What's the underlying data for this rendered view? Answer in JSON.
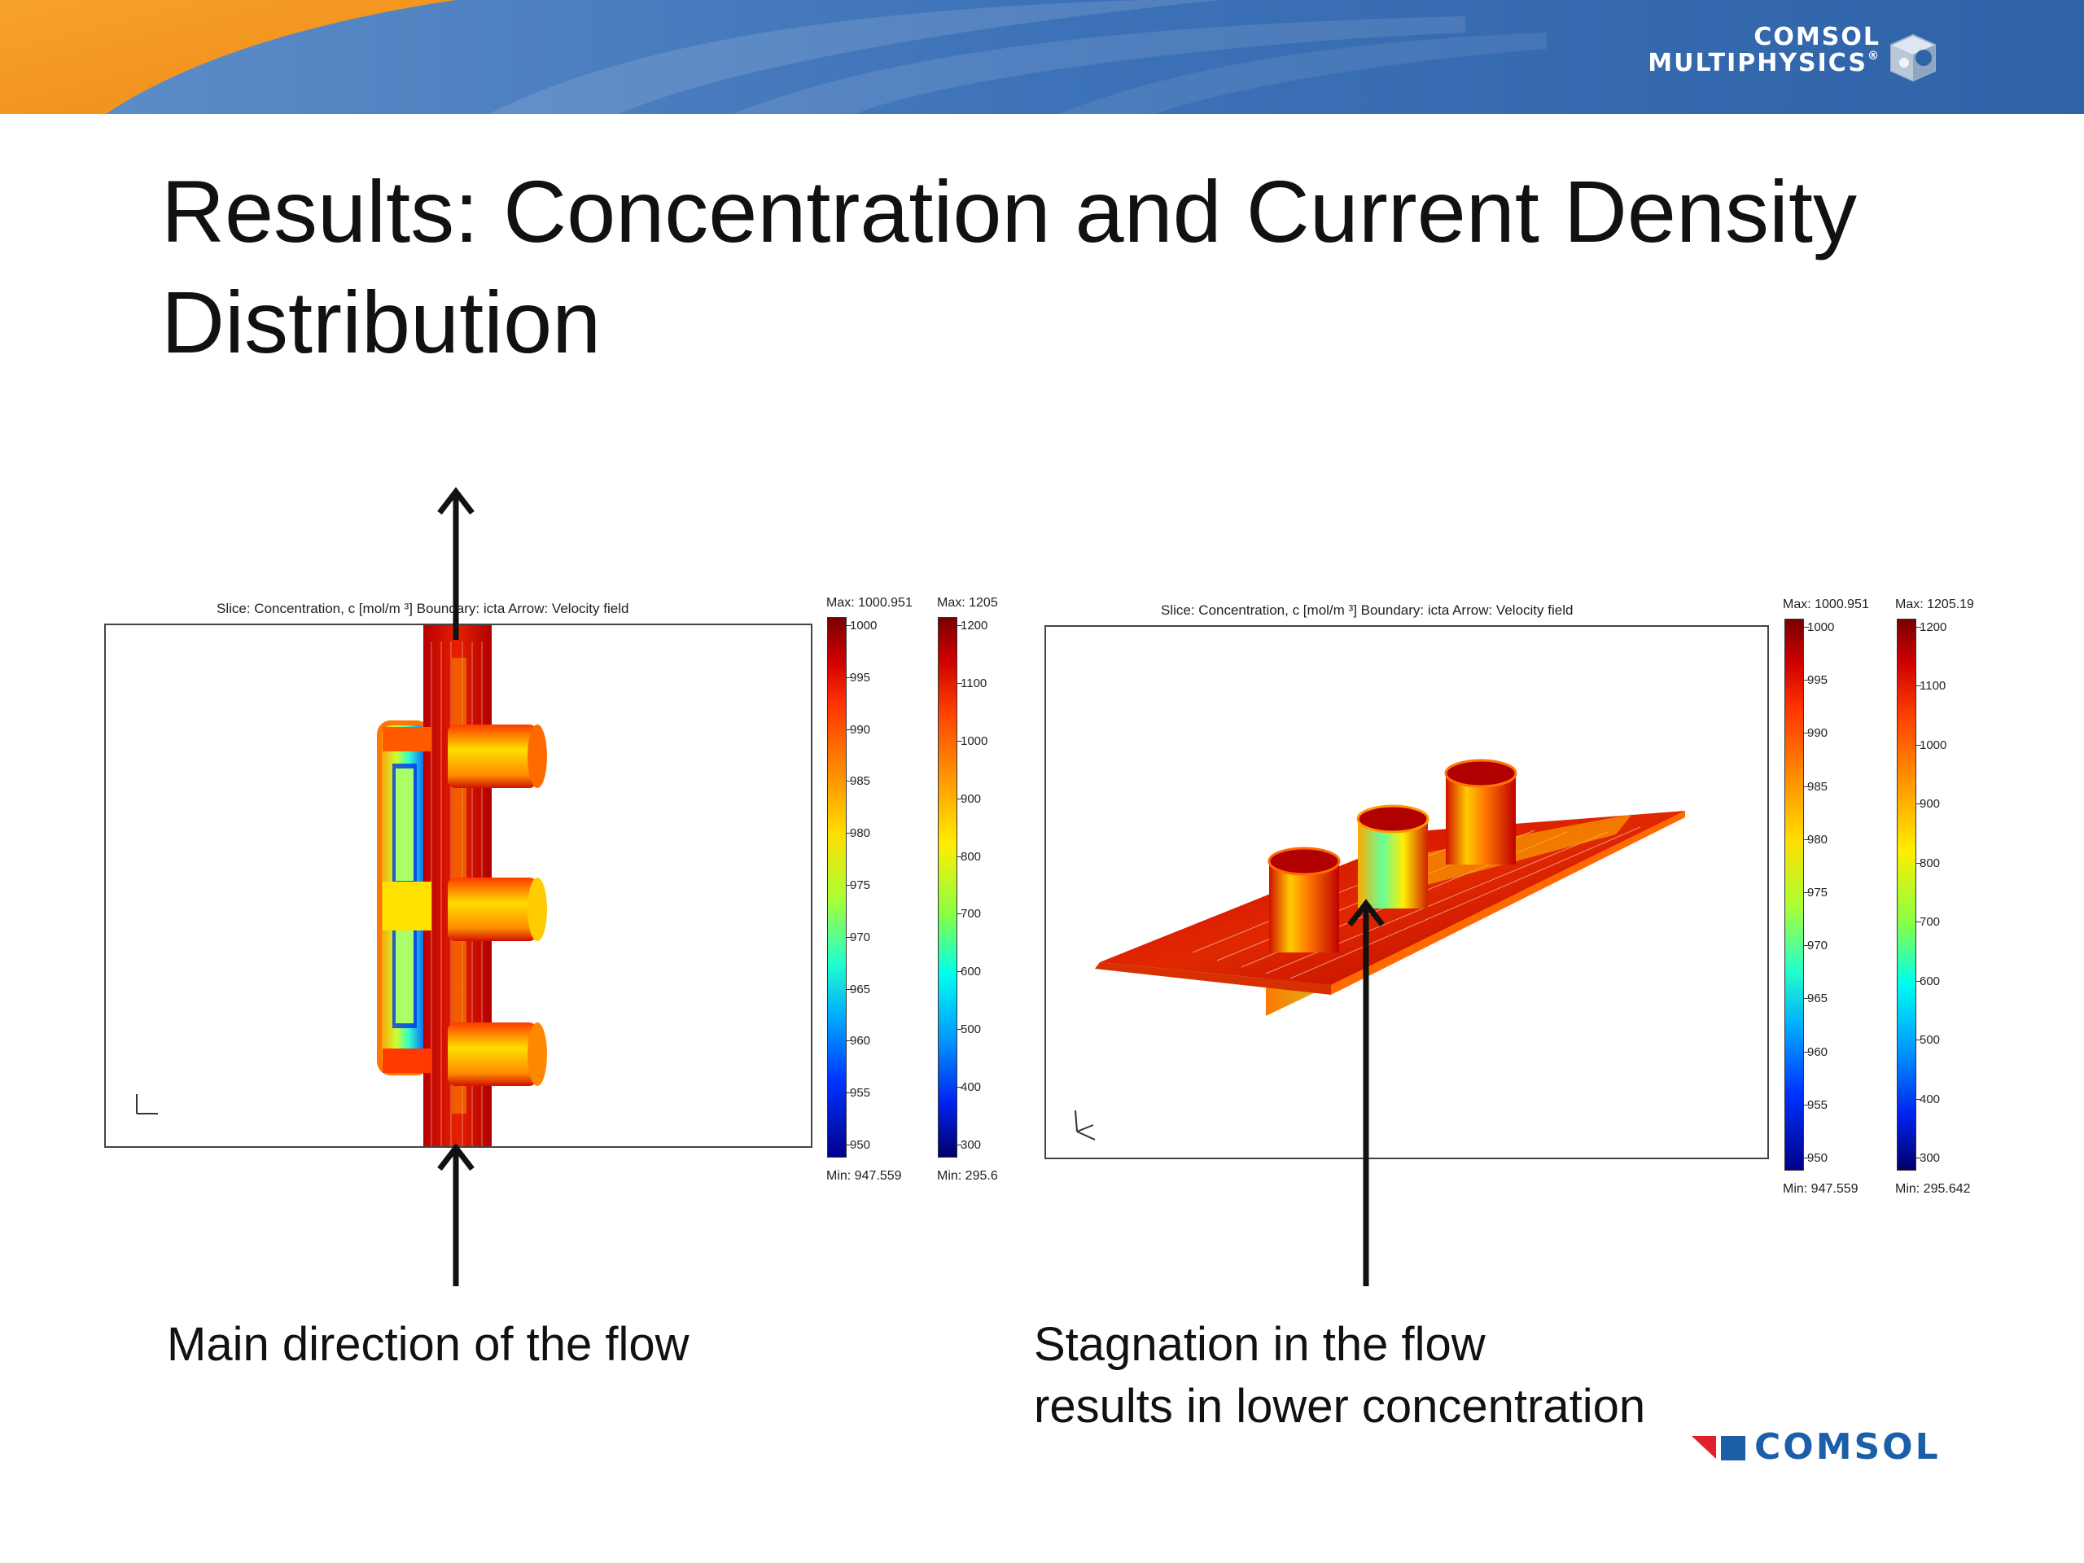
{
  "header": {
    "brand_line1": "COMSOL",
    "brand_line2": "MULTIPHYSICS",
    "registered": "®",
    "icon": "comsol-cube-icon",
    "colors": {
      "orange": "#f39a1f",
      "blue": "#2f6eb5"
    }
  },
  "title": "Results: Concentration and Current Density Distribution",
  "left_figure": {
    "plot_title": "Slice: Concentration, c [mol/m ³]  Boundary: icta   Arrow: Velocity field",
    "conc_bar": {
      "max": "Max: 1000.951",
      "min": "Min: 947.559",
      "ticks": [
        "1000",
        "995",
        "990",
        "985",
        "980",
        "975",
        "970",
        "965",
        "960",
        "955",
        "950"
      ]
    },
    "curr_bar": {
      "max": "Max: 1205",
      "min": "Min: 295.6",
      "ticks": [
        "1200",
        "1100",
        "1000",
        "900",
        "800",
        "700",
        "600",
        "500",
        "400",
        "300"
      ]
    }
  },
  "right_figure": {
    "plot_title": "Slice: Concentration, c [mol/m ³]   Boundary: icta   Arrow: Velocity field",
    "conc_bar": {
      "max": "Max: 1000.951",
      "min": "Min: 947.559",
      "ticks": [
        "1000",
        "995",
        "990",
        "985",
        "980",
        "975",
        "970",
        "965",
        "960",
        "955",
        "950"
      ]
    },
    "curr_bar": {
      "max": "Max: 1205.19",
      "min": "Min: 295.642",
      "ticks": [
        "1200",
        "1100",
        "1000",
        "900",
        "800",
        "700",
        "600",
        "500",
        "400",
        "300"
      ]
    }
  },
  "captions": {
    "left": "Main direction of the flow",
    "right_line1": "Stagnation in the flow",
    "right_line2": "results in lower concentration"
  },
  "footer": {
    "logo_text": "COMSOL",
    "colors": {
      "red": "#e0202a",
      "blue": "#1b5fa8"
    }
  }
}
